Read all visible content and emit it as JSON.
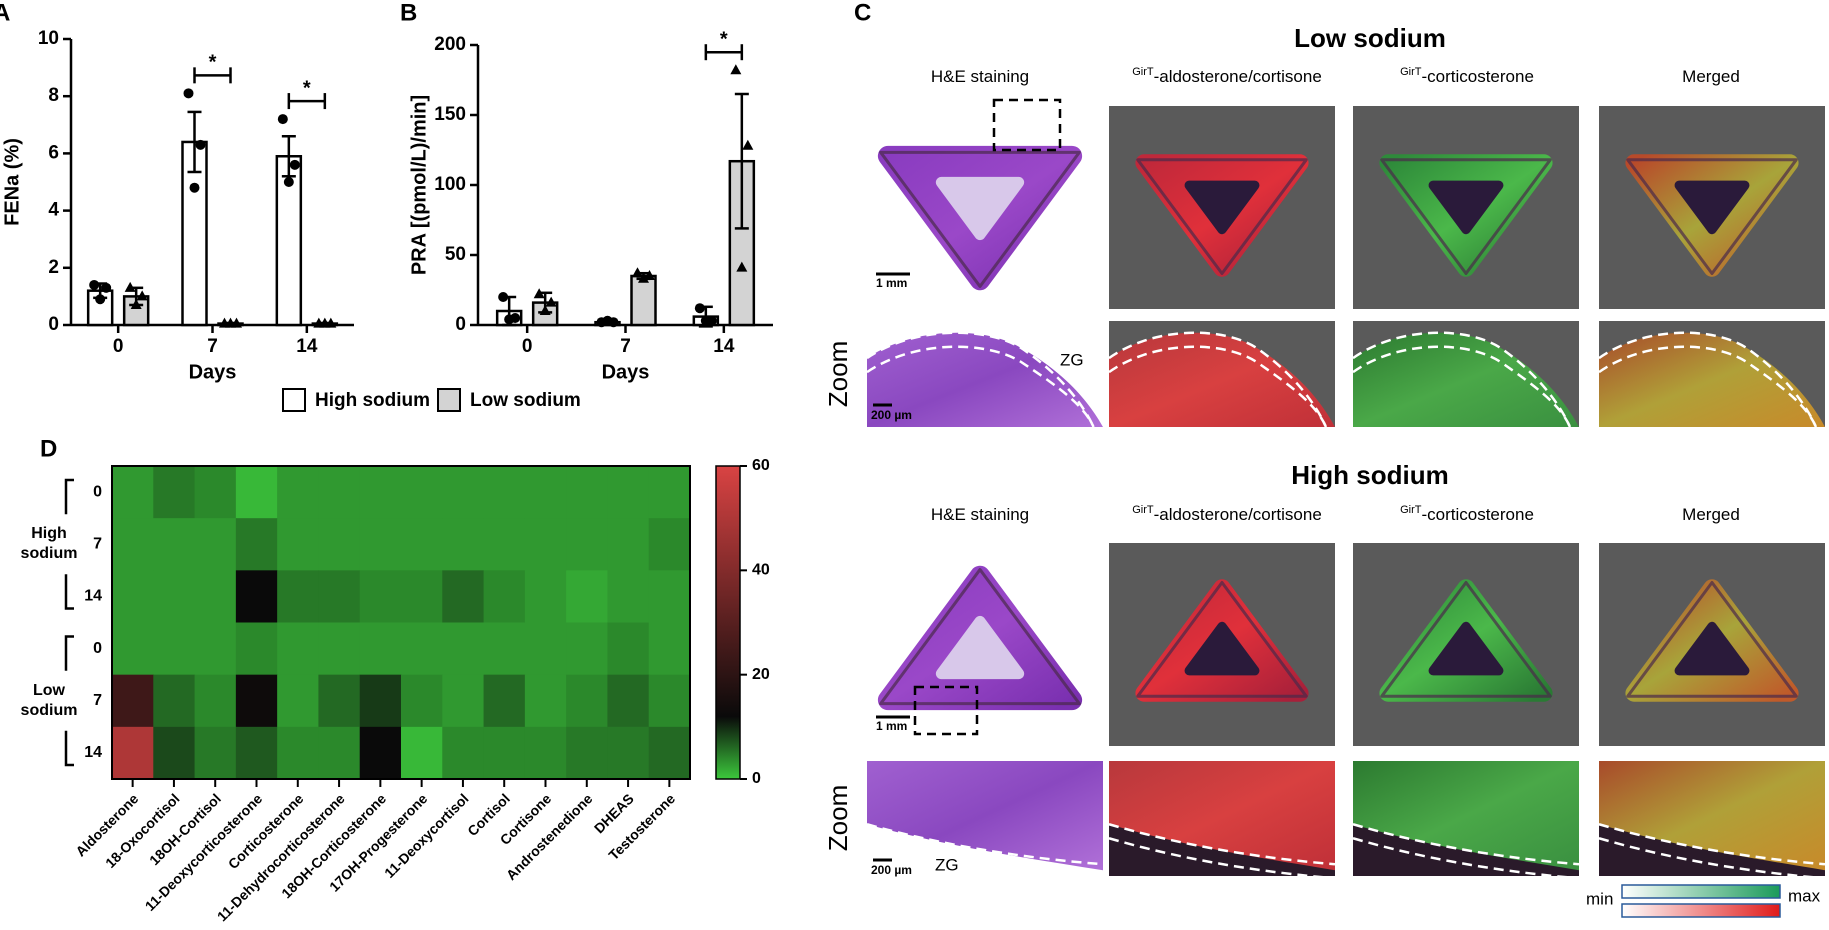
{
  "chart_data": [
    {
      "type": "bar",
      "panel": "A",
      "y_label": "FENa (%)",
      "x_label": "Days",
      "categories": [
        "0",
        "7",
        "14"
      ],
      "ylim": [
        0,
        10
      ],
      "yticks": [
        0,
        2,
        4,
        6,
        8,
        10
      ],
      "series": [
        {
          "color": "#ffffff",
          "marker": "circle",
          "values": [
            1.2,
            6.4,
            5.9
          ],
          "errors": [
            0.25,
            1.05,
            0.7
          ],
          "points": [
            [
              1.4,
              1.3,
              0.9
            ],
            [
              8.1,
              6.3,
              4.8
            ],
            [
              7.2,
              5.6,
              5.0
            ]
          ]
        },
        {
          "color": "#d3d3d3",
          "marker": "triangle",
          "values": [
            1.0,
            0.05,
            0.05
          ],
          "errors": [
            0.3,
            0.02,
            0.02
          ],
          "points": [
            [
              1.3,
              1.0,
              0.7
            ],
            [
              0.05,
              0.05,
              0.05
            ],
            [
              0.05,
              0.05,
              0.05
            ]
          ]
        }
      ],
      "significance": [
        null,
        "*",
        "*"
      ]
    },
    {
      "type": "bar",
      "panel": "B",
      "y_label": "PRA [(pmol/L)/min]",
      "x_label": "Days",
      "categories": [
        "0",
        "7",
        "14"
      ],
      "ylim": [
        0,
        200
      ],
      "yticks": [
        0,
        50,
        100,
        150,
        200
      ],
      "series": [
        {
          "name": "High sodium",
          "color": "#ffffff",
          "marker": "circle",
          "values": [
            10,
            2,
            6
          ],
          "errors": [
            10,
            1,
            7
          ],
          "points": [
            [
              20,
              5,
              4
            ],
            [
              2,
              2,
              3
            ],
            [
              12,
              3,
              3
            ]
          ]
        },
        {
          "name": "Low sodium",
          "color": "#d3d3d3",
          "marker": "triangle",
          "values": [
            16,
            35,
            117
          ],
          "errors": [
            7,
            2,
            48
          ],
          "points": [
            [
              22,
              16,
              10
            ],
            [
              37,
              35,
              33
            ],
            [
              182,
              128,
              41
            ]
          ]
        }
      ],
      "significance": [
        null,
        null,
        "*"
      ]
    },
    {
      "type": "heatmap",
      "panel": "D",
      "x_categories": [
        "Aldosterone",
        "18-Oxocortisol",
        "18OH-Cortisol",
        "11-Deoxycorticosterone",
        "Corticosterone",
        "11-Dehydrocorticosterone",
        "18OH-Corticosterone",
        "17OH-Progesterone",
        "11-Deoxycortisol",
        "Cortisol",
        "Cortisone",
        "Androstenedione",
        "DHEAS",
        "Testosterone"
      ],
      "groups": [
        {
          "name": "High sodium",
          "rows": [
            "0",
            "7",
            "14"
          ],
          "values": [
            [
              3,
              5,
              4,
              1,
              3,
              3,
              3,
              3,
              3,
              3,
              3,
              3,
              3,
              3
            ],
            [
              3,
              3,
              3,
              5,
              3,
              3,
              3,
              3,
              3,
              3,
              3,
              3,
              3,
              4
            ],
            [
              3,
              3,
              3,
              12,
              5,
              5,
              4,
              4,
              6,
              4,
              3,
              2,
              3,
              3
            ]
          ]
        },
        {
          "name": "Low sodium",
          "rows": [
            "0",
            "7",
            "14"
          ],
          "values": [
            [
              3,
              3,
              3,
              4,
              3,
              3,
              3,
              3,
              3,
              3,
              3,
              3,
              4,
              3
            ],
            [
              24,
              6,
              4,
              13,
              3,
              6,
              9,
              4,
              3,
              6,
              3,
              4,
              6,
              4
            ],
            [
              50,
              8,
              5,
              7,
              4,
              4,
              12,
              1,
              4,
              4,
              4,
              5,
              5,
              6
            ]
          ]
        }
      ],
      "zlim": [
        0,
        60
      ],
      "zticks": [
        0,
        20,
        40,
        60
      ],
      "colorscale": [
        {
          "value": 0,
          "color": "#3cc83c"
        },
        {
          "value": 12,
          "color": "#0a0a0a"
        },
        {
          "value": 60,
          "color": "#d94343"
        }
      ]
    }
  ],
  "panel_c": {
    "panel": "C",
    "sections": [
      {
        "title": "Low sodium",
        "columns": [
          {
            "text": "H&E staining"
          },
          {
            "superscript": "GirT",
            "text": "-aldosterone/cortisone"
          },
          {
            "superscript": "GirT",
            "text": "-corticosterone"
          },
          {
            "text": "Merged"
          }
        ],
        "scale_bar": "1 mm",
        "zoom_label": "Zoom",
        "zoom_scale_bar": "200 µm",
        "zone_label": "ZG"
      },
      {
        "title": "High sodium",
        "columns": [
          {
            "text": "H&E staining"
          },
          {
            "superscript": "GirT",
            "text": "-aldosterone/cortisone"
          },
          {
            "superscript": "GirT",
            "text": "-corticosterone"
          },
          {
            "text": "Merged"
          }
        ],
        "scale_bar": "1 mm",
        "zoom_label": "Zoom",
        "zoom_scale_bar": "200 µm",
        "zone_label": "ZG"
      }
    ],
    "intensity_legend": {
      "min": "min",
      "max": "max"
    }
  }
}
